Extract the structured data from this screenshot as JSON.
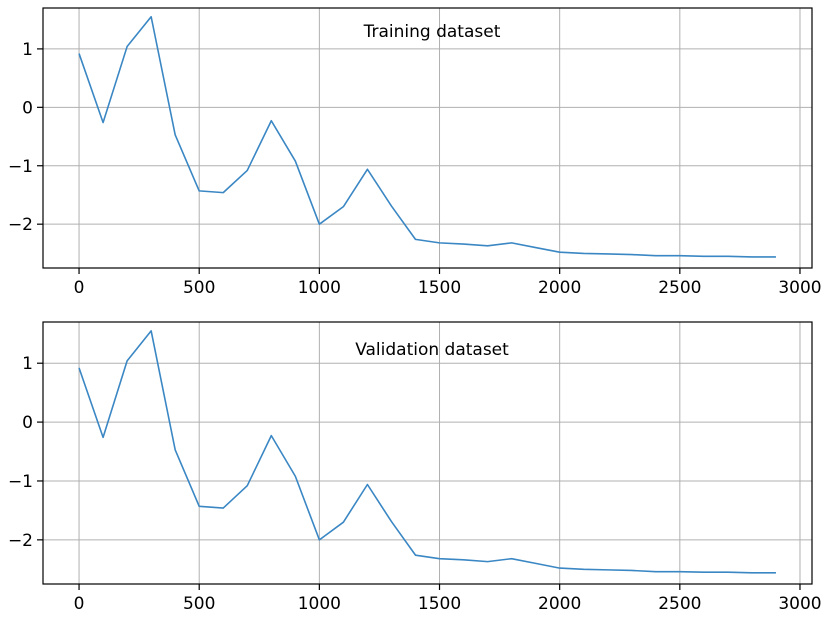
{
  "chart_data": [
    {
      "type": "line",
      "title": "Training dataset",
      "xlabel": "",
      "ylabel": "",
      "grid": true,
      "line_color": "#3a87c4",
      "xlim": [
        -150,
        3050
      ],
      "ylim": [
        -2.75,
        1.7
      ],
      "xticks": [
        0,
        500,
        1000,
        1500,
        2000,
        2500,
        3000
      ],
      "yticks": [
        1,
        0,
        -1,
        -2
      ],
      "xtick_labels": [
        "0",
        "500",
        "1000",
        "1500",
        "2000",
        "2500",
        "3000"
      ],
      "ytick_labels": [
        "1",
        "0",
        "−1",
        "−2"
      ],
      "series": [
        {
          "x": [
            0,
            100,
            200,
            300,
            400,
            500,
            600,
            700,
            800,
            900,
            1000,
            1100,
            1200,
            1300,
            1400,
            1500,
            1600,
            1700,
            1800,
            1900,
            2000,
            2100,
            2200,
            2300,
            2400,
            2500,
            2600,
            2700,
            2800,
            2900
          ],
          "y": [
            0.92,
            -0.26,
            1.04,
            1.55,
            -0.47,
            -1.43,
            -1.46,
            -1.08,
            -0.23,
            -0.92,
            -2.0,
            -1.7,
            -1.06,
            -1.69,
            -2.26,
            -2.32,
            -2.34,
            -2.37,
            -2.32,
            -2.4,
            -2.48,
            -2.5,
            -2.51,
            -2.52,
            -2.54,
            -2.54,
            -2.55,
            -2.55,
            -2.56,
            -2.56
          ]
        }
      ]
    },
    {
      "type": "line",
      "title": "Validation dataset",
      "xlabel": "",
      "ylabel": "",
      "grid": true,
      "line_color": "#3a87c4",
      "xlim": [
        -150,
        3050
      ],
      "ylim": [
        -2.75,
        1.7
      ],
      "xticks": [
        0,
        500,
        1000,
        1500,
        2000,
        2500,
        3000
      ],
      "yticks": [
        1,
        0,
        -1,
        -2
      ],
      "xtick_labels": [
        "0",
        "500",
        "1000",
        "1500",
        "2000",
        "2500",
        "3000"
      ],
      "ytick_labels": [
        "1",
        "0",
        "−1",
        "−2"
      ],
      "series": [
        {
          "x": [
            0,
            100,
            200,
            300,
            400,
            500,
            600,
            700,
            800,
            900,
            1000,
            1100,
            1200,
            1300,
            1400,
            1500,
            1600,
            1700,
            1800,
            1900,
            2000,
            2100,
            2200,
            2300,
            2400,
            2500,
            2600,
            2700,
            2800,
            2900
          ],
          "y": [
            0.92,
            -0.26,
            1.04,
            1.55,
            -0.47,
            -1.43,
            -1.46,
            -1.08,
            -0.23,
            -0.92,
            -2.0,
            -1.7,
            -1.06,
            -1.69,
            -2.26,
            -2.32,
            -2.34,
            -2.37,
            -2.32,
            -2.4,
            -2.48,
            -2.5,
            -2.51,
            -2.52,
            -2.54,
            -2.54,
            -2.55,
            -2.55,
            -2.56,
            -2.56
          ]
        }
      ]
    }
  ]
}
